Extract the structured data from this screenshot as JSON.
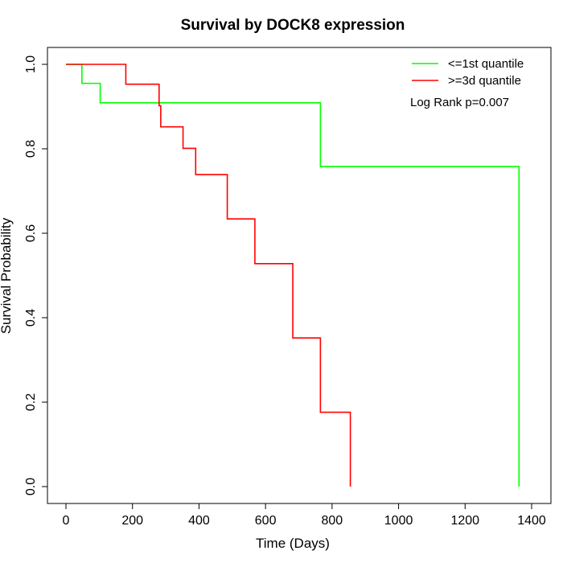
{
  "chart_data": {
    "type": "line",
    "title": "Survival by DOCK8 expression",
    "xlabel": "Time (Days)",
    "ylabel": "Survival Probability",
    "xlim": [
      0,
      1400
    ],
    "ylim": [
      0,
      1.0
    ],
    "xticks": [
      0,
      200,
      400,
      600,
      800,
      1000,
      1200,
      1400
    ],
    "yticks": [
      0.0,
      0.2,
      0.4,
      0.6,
      0.8,
      1.0
    ],
    "xtick_labels": [
      "0",
      "200",
      "400",
      "600",
      "800",
      "1000",
      "1200",
      "1400"
    ],
    "ytick_labels": [
      "0.0",
      "0.2",
      "0.4",
      "0.6",
      "0.8",
      "1.0"
    ],
    "grid": false,
    "legend_position": "top-right",
    "annotation": "Log Rank p=0.007",
    "series": [
      {
        "name": "<=1st quantile",
        "color": "#00ff00",
        "step": true,
        "x": [
          0,
          48,
          103,
          765,
          1362,
          1362
        ],
        "y": [
          1.0,
          0.955,
          0.909,
          0.758,
          0.758,
          0.0
        ]
      },
      {
        "name": ">=3d quantile",
        "color": "#ff0000",
        "step": true,
        "x": [
          0,
          180,
          280,
          285,
          352,
          390,
          485,
          568,
          682,
          765,
          855,
          855
        ],
        "y": [
          1.0,
          0.953,
          0.902,
          0.852,
          0.801,
          0.739,
          0.634,
          0.528,
          0.352,
          0.176,
          0.176,
          0.0
        ]
      }
    ]
  }
}
